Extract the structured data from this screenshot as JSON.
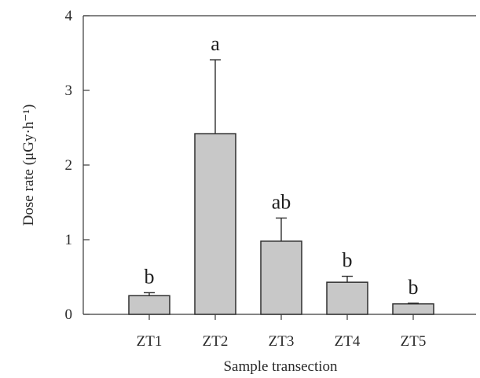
{
  "chart_data": {
    "type": "bar",
    "categories": [
      "ZT1",
      "ZT2",
      "ZT3",
      "ZT4",
      "ZT5"
    ],
    "values": [
      0.25,
      2.42,
      0.98,
      0.43,
      0.14
    ],
    "error_upper": [
      0.29,
      3.41,
      1.29,
      0.51,
      0.15
    ],
    "significance_letters": [
      "b",
      "a",
      "ab",
      "b",
      "b"
    ],
    "xlabel": "Sample transection",
    "ylabel": "Dose rate (μGy·h⁻¹)",
    "ylim": [
      0,
      4
    ],
    "yticks": [
      "0",
      "1",
      "2",
      "3",
      "4"
    ],
    "grid": false,
    "colors": {
      "bar_fill": "#c8c8c8",
      "bar_stroke": "#2f2f2f",
      "axis": "#3a3a3a"
    }
  }
}
